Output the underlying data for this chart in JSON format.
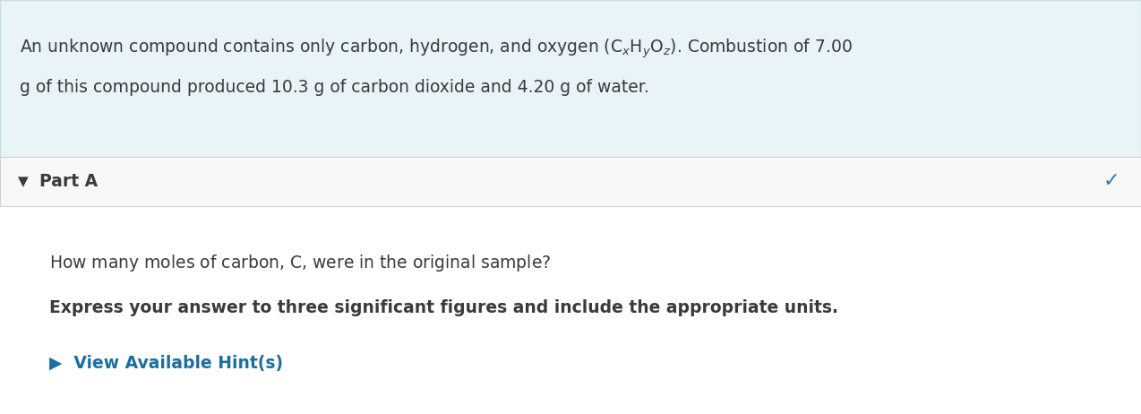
{
  "bg_color": "#ffffff",
  "header_bg_color": "#e8f4f7",
  "part_bg_color": "#f7f7f7",
  "header_border_color": "#c8dde3",
  "part_border_color": "#d0d0d0",
  "text_color": "#3a3a3a",
  "checkmark_color": "#2a7fa8",
  "hint_color": "#1a6fa0",
  "divider_color": "#d0d0d0",
  "figsize": [
    12.74,
    4.62
  ],
  "dpi": 100,
  "header_line1": "An unknown compound contains only carbon, hydrogen, and oxygen ($\\mathregular{C_{\\mathit{x}}H_{\\mathit{y}}O_{\\mathit{z}}}$). Combustion of 7.00",
  "header_line2": "g of this compound produced 10.3 g of carbon dioxide and 4.20 g of water.",
  "part_label": "Part A",
  "question_line": "How many moles of carbon, $\\mathregular{C}$, were in the original sample?",
  "bold_line": "Express your answer to three significant figures and include the appropriate units.",
  "hint_line": "▶  View Available Hint(s)"
}
